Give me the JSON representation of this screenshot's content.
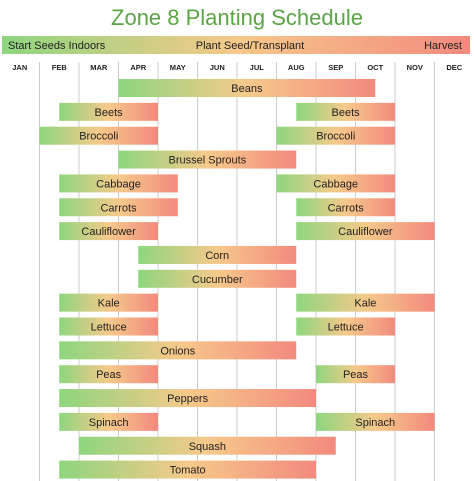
{
  "chart_data": {
    "type": "bar",
    "title": "Zone 8 Planting Schedule",
    "legend": {
      "start": "Start Seeds Indoors",
      "middle": "Plant Seed/Transplant",
      "end": "Harvest"
    },
    "months": [
      "JAN",
      "FEB",
      "MAR",
      "APR",
      "MAY",
      "JUN",
      "JUL",
      "AUG",
      "SEP",
      "OCT",
      "NOV",
      "DEC"
    ],
    "colors": {
      "title": "#5aa544",
      "start": "#8ed67e",
      "middle": "#f6c98a",
      "end": "#f28a7e",
      "grid": "#cccccc",
      "text": "#222222"
    },
    "series": [
      {
        "label": "Beans",
        "bars": [
          [
            3.0,
            9.5
          ]
        ]
      },
      {
        "label": "Beets",
        "bars": [
          [
            1.5,
            4.0
          ],
          [
            7.5,
            10.0
          ]
        ]
      },
      {
        "label": "Broccoli",
        "bars": [
          [
            1.0,
            4.0
          ],
          [
            7.0,
            10.0
          ]
        ]
      },
      {
        "label": "Brussel Sprouts",
        "bars": [
          [
            3.0,
            7.5
          ]
        ]
      },
      {
        "label": "Cabbage",
        "bars": [
          [
            1.5,
            4.5
          ],
          [
            7.0,
            10.0
          ]
        ]
      },
      {
        "label": "Carrots",
        "bars": [
          [
            1.5,
            4.5
          ],
          [
            7.5,
            10.0
          ]
        ]
      },
      {
        "label": "Cauliflower",
        "bars": [
          [
            1.5,
            4.0
          ],
          [
            7.5,
            11.0
          ]
        ]
      },
      {
        "label": "Corn",
        "bars": [
          [
            3.5,
            7.5
          ]
        ]
      },
      {
        "label": "Cucumber",
        "bars": [
          [
            3.5,
            7.5
          ]
        ]
      },
      {
        "label": "Kale",
        "bars": [
          [
            1.5,
            4.0
          ],
          [
            7.5,
            11.0
          ]
        ]
      },
      {
        "label": "Lettuce",
        "bars": [
          [
            1.5,
            4.0
          ],
          [
            7.5,
            10.0
          ]
        ]
      },
      {
        "label": "Onions",
        "bars": [
          [
            1.5,
            7.5
          ]
        ]
      },
      {
        "label": "Peas",
        "bars": [
          [
            1.5,
            4.0
          ],
          [
            8.0,
            10.0
          ]
        ]
      },
      {
        "label": "Peppers",
        "bars": [
          [
            1.5,
            8.0
          ]
        ]
      },
      {
        "label": "Spinach",
        "bars": [
          [
            1.5,
            4.0
          ],
          [
            8.0,
            11.0
          ]
        ]
      },
      {
        "label": "Squash",
        "bars": [
          [
            2.0,
            8.5
          ]
        ]
      },
      {
        "label": "Tomato",
        "bars": [
          [
            1.5,
            8.0
          ]
        ]
      }
    ]
  }
}
